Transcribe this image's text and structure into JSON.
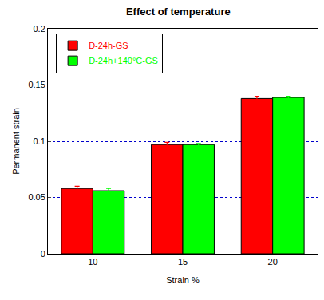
{
  "chart_data": {
    "type": "bar",
    "title": "Effect of temperature",
    "x_label": "Strain %",
    "y_label": "Permanent strain",
    "categories": [
      "10",
      "15",
      "20"
    ],
    "series": [
      {
        "name": "D-24h-GS",
        "color": "#ff0000",
        "values": [
          0.058,
          0.097,
          0.138
        ],
        "errors": [
          0.002,
          0.002,
          0.002
        ]
      },
      {
        "name": "D-24h+140°C-GS",
        "color": "#00ff00",
        "values": [
          0.056,
          0.097,
          0.139
        ],
        "errors": [
          0.002,
          0.001,
          0.001
        ]
      }
    ],
    "ylim": [
      0,
      0.2
    ],
    "yticks": [
      0,
      0.05,
      0.1,
      0.15,
      0.2
    ],
    "grid": true,
    "legend": "top-left"
  }
}
